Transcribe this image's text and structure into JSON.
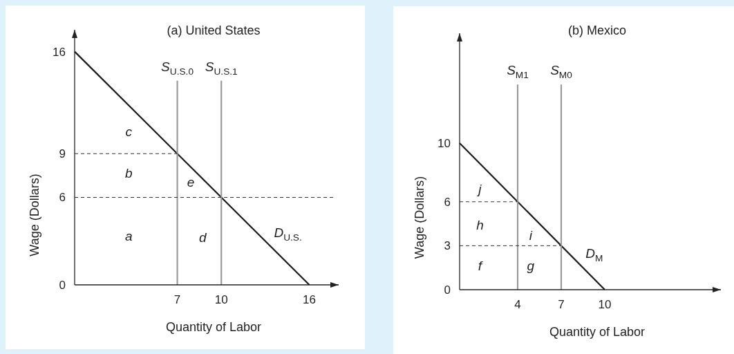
{
  "chart_data": [
    {
      "type": "line",
      "title": "(a) United States",
      "xlabel": "Quantity of Labor",
      "ylabel": "Wage (Dollars)",
      "xlim": [
        0,
        18
      ],
      "ylim": [
        0,
        17.5
      ],
      "xticks": [
        7,
        10,
        16
      ],
      "yticks": [
        0,
        6,
        9,
        16
      ],
      "grid": false,
      "marker": "none",
      "series": [
        {
          "name": "D$_{U.S.}$",
          "color": "#1a1a1a",
          "x": [
            0,
            16
          ],
          "values": [
            16,
            0
          ],
          "line_style": "solid"
        },
        {
          "name": "S$_{U.S.0}$",
          "color": "#9a9a9a",
          "x": [
            7,
            7
          ],
          "values": [
            0,
            14
          ],
          "line_style": "solid"
        },
        {
          "name": "S$_{U.S.1}$",
          "color": "#9a9a9a",
          "x": [
            10,
            10
          ],
          "values": [
            0,
            14
          ],
          "line_style": "solid"
        },
        {
          "color": "#333333",
          "x": [
            0,
            7
          ],
          "values": [
            9,
            9
          ],
          "line_style": "dashed"
        },
        {
          "color": "#333333",
          "x": [
            0,
            17.7
          ],
          "values": [
            6,
            6
          ],
          "line_style": "dashed"
        }
      ],
      "annotations": [
        "a",
        "b",
        "c",
        "d",
        "e"
      ]
    },
    {
      "type": "line",
      "title": "(b) Mexico",
      "xlabel": "Quantity of Labor",
      "ylabel": "Wage (Dollars)",
      "xlim": [
        0,
        18
      ],
      "ylim": [
        0,
        17.5
      ],
      "xticks": [
        4,
        7,
        10
      ],
      "yticks": [
        0,
        3,
        6,
        10
      ],
      "grid": false,
      "marker": "none",
      "series": [
        {
          "name": "D$_{M}$",
          "color": "#1a1a1a",
          "x": [
            0,
            10
          ],
          "values": [
            10,
            0
          ],
          "line_style": "solid"
        },
        {
          "name": "S$_{M1}$",
          "color": "#9a9a9a",
          "x": [
            4,
            4
          ],
          "values": [
            0,
            14
          ],
          "line_style": "solid"
        },
        {
          "name": "S$_{M0}$",
          "color": "#9a9a9a",
          "x": [
            7,
            7
          ],
          "values": [
            0,
            14
          ],
          "line_style": "solid"
        },
        {
          "color": "#333333",
          "x": [
            0,
            4
          ],
          "values": [
            6,
            6
          ],
          "line_style": "dashed"
        },
        {
          "color": "#333333",
          "x": [
            0,
            7
          ],
          "values": [
            3,
            3
          ],
          "line_style": "dashed"
        }
      ],
      "annotations": [
        "f",
        "g",
        "h",
        "i",
        "j"
      ]
    }
  ]
}
